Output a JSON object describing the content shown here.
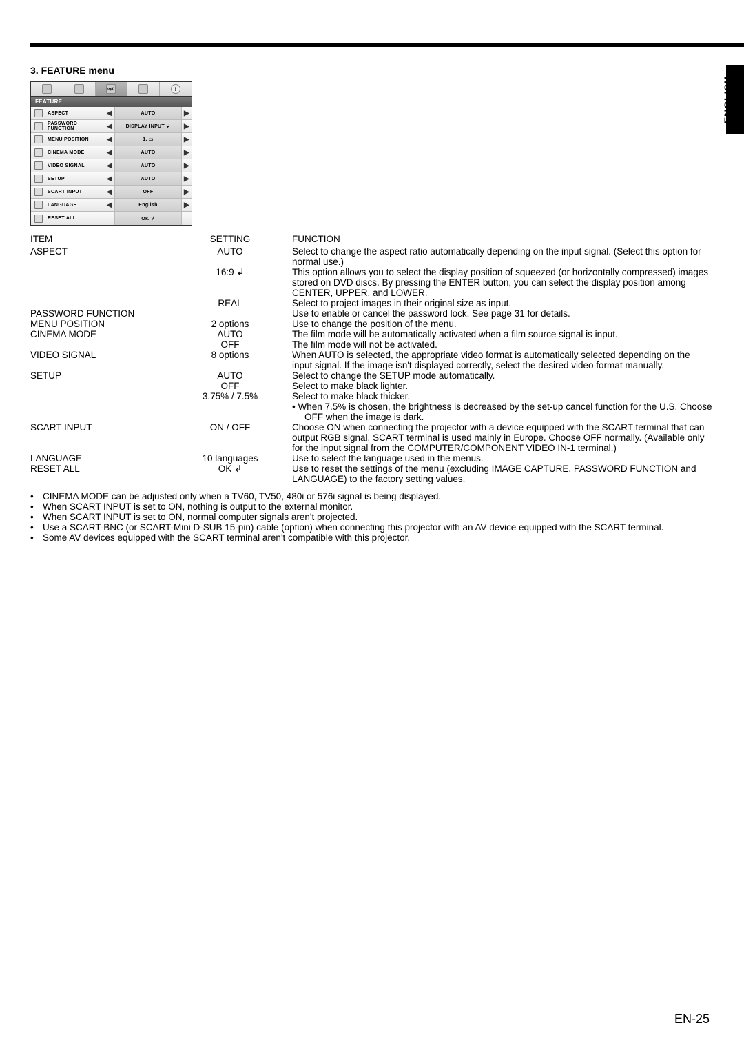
{
  "language_tab": "ENGLISH",
  "page_number": "EN-25",
  "menu_title": "3. FEATURE menu",
  "osd": {
    "header": "FEATURE",
    "rows": [
      {
        "label": "ASPECT",
        "value": "AUTO",
        "left": "◀",
        "right": "▶"
      },
      {
        "label": "PASSWORD FUNCTION",
        "value": "DISPLAY INPUT ↲",
        "left": "◀",
        "right": "▶"
      },
      {
        "label": "MENU POSITION",
        "value": "1. ▭",
        "left": "◀",
        "right": "▶"
      },
      {
        "label": "CINEMA MODE",
        "value": "AUTO",
        "left": "◀",
        "right": "▶"
      },
      {
        "label": "VIDEO SIGNAL",
        "value": "AUTO",
        "left": "◀",
        "right": "▶"
      },
      {
        "label": "SETUP",
        "value": "AUTO",
        "left": "◀",
        "right": "▶"
      },
      {
        "label": "SCART INPUT",
        "value": "OFF",
        "left": "◀",
        "right": "▶"
      },
      {
        "label": "LANGUAGE",
        "value": "English",
        "left": "◀",
        "right": "▶"
      },
      {
        "label": "RESET ALL",
        "value": "OK ↲",
        "left": "",
        "right": ""
      }
    ]
  },
  "table": {
    "headers": {
      "item": "ITEM",
      "setting": "SETTING",
      "function": "FUNCTION"
    },
    "rows": [
      {
        "item": "ASPECT",
        "setting": "AUTO",
        "func": "Select to change the aspect ratio automatically depending on the input signal. (Select this option for normal use.)"
      },
      {
        "item": "",
        "setting": "16:9 ↲",
        "func": "This option allows you to select the display position of squeezed (or horizontally compressed) images stored on DVD discs. By pressing the ENTER button, you can select the display position among CENTER, UPPER, and LOWER."
      },
      {
        "item": "",
        "setting": "REAL",
        "func": "Select to project images in their original size as input."
      },
      {
        "item": "PASSWORD FUNCTION",
        "setting": "",
        "func": "Use to enable or cancel the password lock. See page 31 for details."
      },
      {
        "item": "MENU POSITION",
        "setting": "2 options",
        "func": "Use to change the position of the menu."
      },
      {
        "item": "CINEMA MODE",
        "setting": "AUTO",
        "func": "The film mode will be automatically activated when a film source signal is input."
      },
      {
        "item": "",
        "setting": "OFF",
        "func": "The film mode will not be activated."
      },
      {
        "item": "VIDEO SIGNAL",
        "setting": "8 options",
        "func": "When AUTO is selected, the appropriate video format is automatically selected depending on the input signal. If the image isn't displayed correctly, select the desired video format manually."
      },
      {
        "item": "SETUP",
        "setting": "AUTO",
        "func": "Select to change the SETUP mode automatically."
      },
      {
        "item": "",
        "setting": "OFF",
        "func": "Select to make black lighter."
      },
      {
        "item": "",
        "setting": "3.75% / 7.5%",
        "func": "Select to make black thicker."
      },
      {
        "item": "",
        "setting": "",
        "func": "•   When 7.5% is chosen, the brightness is decreased by the set-up cancel function for the U.S. Choose OFF when the image is dark.",
        "indent": true
      },
      {
        "item": "SCART INPUT",
        "setting": "ON / OFF",
        "func": "Choose ON when connecting the projector with a device equipped with the SCART terminal that can output RGB signal. SCART terminal is used mainly in Europe. Choose OFF normally. (Available only for the input signal from the COMPUTER/COMPONENT VIDEO IN-1 terminal.)"
      },
      {
        "item": "LANGUAGE",
        "setting": "10 languages",
        "func": "Use to select the language used in the menus."
      },
      {
        "item": "RESET ALL",
        "setting": "OK ↲",
        "func": "Use to reset the settings of the menu (excluding IMAGE CAPTURE, PASSWORD FUNCTION and LANGUAGE) to the factory setting values."
      }
    ]
  },
  "notes": [
    "CINEMA MODE can be adjusted only when a TV60, TV50, 480i or 576i signal is being displayed.",
    "When SCART INPUT is set to ON, nothing is output to the external monitor.",
    "When SCART INPUT is set to ON, normal computer signals aren't projected.",
    "Use a SCART-BNC (or SCART-Mini D-SUB 15-pin) cable (option) when connecting this projector with an AV device equipped with the SCART terminal.",
    "Some AV devices equipped with the SCART terminal aren't compatible with this projector."
  ]
}
